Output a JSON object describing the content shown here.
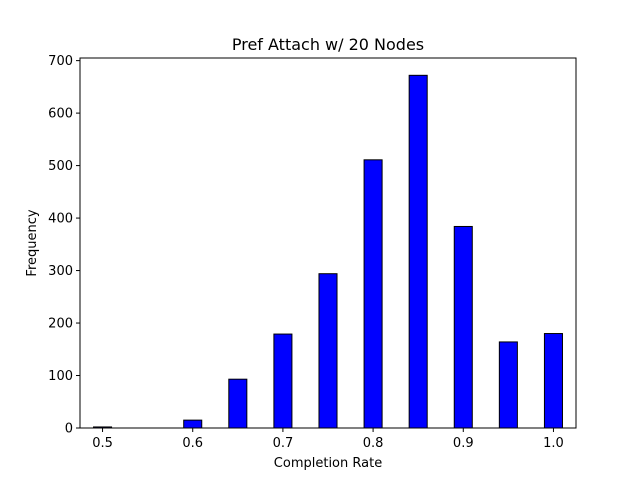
{
  "chart_data": {
    "type": "bar",
    "title": "Pref Attach w/ 20 Nodes",
    "xlabel": "Completion Rate",
    "ylabel": "Frequency",
    "xlim": [
      0.475,
      1.025
    ],
    "ylim": [
      0,
      705
    ],
    "xticks": [
      "0.5",
      "0.6",
      "0.7",
      "0.8",
      "0.9",
      "1.0"
    ],
    "yticks": [
      "0",
      "100",
      "200",
      "300",
      "400",
      "500",
      "600",
      "700"
    ],
    "bar_width": 0.02,
    "bar_color": "#0000ff",
    "edge_color": "#000000",
    "grid": false,
    "legend": "none",
    "bins": [
      {
        "x": 0.5,
        "value": 2
      },
      {
        "x": 0.55,
        "value": 0
      },
      {
        "x": 0.6,
        "value": 15
      },
      {
        "x": 0.65,
        "value": 93
      },
      {
        "x": 0.7,
        "value": 179
      },
      {
        "x": 0.75,
        "value": 294
      },
      {
        "x": 0.8,
        "value": 511
      },
      {
        "x": 0.85,
        "value": 672
      },
      {
        "x": 0.9,
        "value": 384
      },
      {
        "x": 0.95,
        "value": 164
      },
      {
        "x": 1.0,
        "value": 180
      }
    ]
  }
}
